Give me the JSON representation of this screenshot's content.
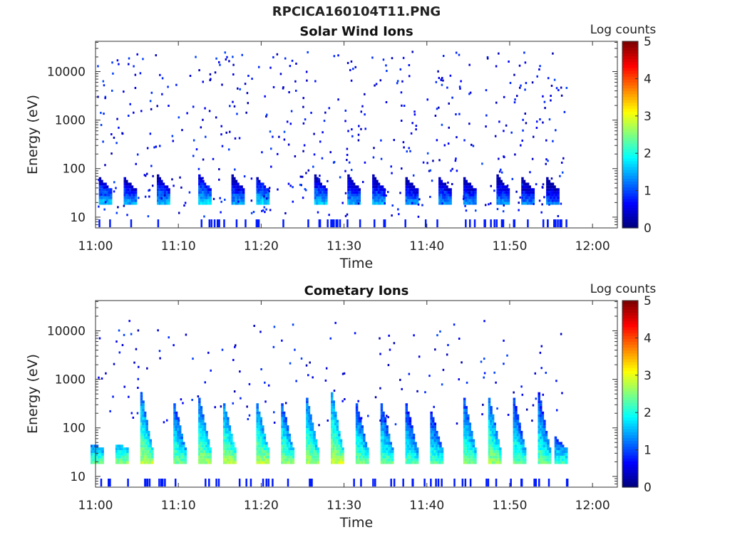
{
  "figure_title": "RPCICA160104T11.PNG",
  "colorbar": {
    "label": "Log counts",
    "ticks": [
      "0",
      "1",
      "2",
      "3",
      "4",
      "5"
    ],
    "colormap": "jet"
  },
  "chart_data": [
    {
      "type": "heatmap",
      "title": "Solar Wind Ions",
      "xlabel": "Time",
      "ylabel": "Energy (eV)",
      "xlim": [
        "11:00",
        "12:03"
      ],
      "ylim": [
        6,
        42000
      ],
      "yscale": "log",
      "x_ticks": [
        "11:00",
        "11:10",
        "11:20",
        "11:30",
        "11:40",
        "11:50",
        "12:00"
      ],
      "y_ticks": [
        "10",
        "100",
        "1000",
        "10000"
      ],
      "data_end": "11:57",
      "color_range": [
        0,
        5
      ],
      "description_of_pattern": "sparse low counts from 100 eV to 10000 eV; periodic bands near 20-60 eV with log counts about 1.5-2.0, repeating roughly every 3.5 minutes",
      "bands": [
        {
          "time": "11:01",
          "energy_eV": [
            18,
            60
          ],
          "peak_log_counts": 1.9
        },
        {
          "time": "11:04",
          "energy_eV": [
            18,
            60
          ],
          "peak_log_counts": 1.7
        },
        {
          "time": "11:08",
          "energy_eV": [
            18,
            70
          ],
          "peak_log_counts": 1.8
        },
        {
          "time": "11:13",
          "energy_eV": [
            18,
            70
          ],
          "peak_log_counts": 2.0
        },
        {
          "time": "11:17",
          "energy_eV": [
            18,
            70
          ],
          "peak_log_counts": 1.7
        },
        {
          "time": "11:20",
          "energy_eV": [
            18,
            60
          ],
          "peak_log_counts": 2.0
        },
        {
          "time": "11:27",
          "energy_eV": [
            18,
            70
          ],
          "peak_log_counts": 1.8
        },
        {
          "time": "11:31",
          "energy_eV": [
            18,
            70
          ],
          "peak_log_counts": 1.7
        },
        {
          "time": "11:34",
          "energy_eV": [
            18,
            70
          ],
          "peak_log_counts": 1.7
        },
        {
          "time": "11:38",
          "energy_eV": [
            18,
            60
          ],
          "peak_log_counts": 1.6
        },
        {
          "time": "11:42",
          "energy_eV": [
            18,
            60
          ],
          "peak_log_counts": 1.7
        },
        {
          "time": "11:45",
          "energy_eV": [
            18,
            60
          ],
          "peak_log_counts": 1.6
        },
        {
          "time": "11:49",
          "energy_eV": [
            18,
            70
          ],
          "peak_log_counts": 1.6
        },
        {
          "time": "11:52",
          "energy_eV": [
            18,
            60
          ],
          "peak_log_counts": 1.5
        },
        {
          "time": "11:55",
          "energy_eV": [
            18,
            60
          ],
          "peak_log_counts": 1.4
        }
      ]
    },
    {
      "type": "heatmap",
      "title": "Cometary Ions",
      "xlabel": "Time",
      "ylabel": "Energy (eV)",
      "xlim": [
        "11:00",
        "12:03"
      ],
      "ylim": [
        6,
        42000
      ],
      "yscale": "log",
      "x_ticks": [
        "11:00",
        "11:10",
        "11:20",
        "11:30",
        "11:40",
        "11:50",
        "12:00"
      ],
      "y_ticks": [
        "10",
        "100",
        "1000",
        "10000"
      ],
      "data_end": "11:57",
      "color_range": [
        0,
        5
      ],
      "description_of_pattern": "strong periodic bands near 20-40 eV with log counts about 2.5-3.2, each with a tail rising toward 500-3000 eV, repeating roughly every 3.5 minutes",
      "bands": [
        {
          "time": "11:00",
          "energy_eV": [
            18,
            45
          ],
          "peak_log_counts": 2.6
        },
        {
          "time": "11:03",
          "energy_eV": [
            18,
            45
          ],
          "peak_log_counts": 2.8
        },
        {
          "time": "11:06",
          "energy_eV": [
            18,
            500
          ],
          "peak_log_counts": 3.0
        },
        {
          "time": "11:10",
          "energy_eV": [
            18,
            300
          ],
          "peak_log_counts": 2.7
        },
        {
          "time": "11:13",
          "energy_eV": [
            18,
            400
          ],
          "peak_log_counts": 2.9
        },
        {
          "time": "11:16",
          "energy_eV": [
            18,
            300
          ],
          "peak_log_counts": 3.0
        },
        {
          "time": "11:20",
          "energy_eV": [
            18,
            300
          ],
          "peak_log_counts": 3.0
        },
        {
          "time": "11:23",
          "energy_eV": [
            18,
            300
          ],
          "peak_log_counts": 2.8
        },
        {
          "time": "11:26",
          "energy_eV": [
            18,
            400
          ],
          "peak_log_counts": 2.9
        },
        {
          "time": "11:29",
          "energy_eV": [
            18,
            500
          ],
          "peak_log_counts": 3.1
        },
        {
          "time": "11:32",
          "energy_eV": [
            18,
            300
          ],
          "peak_log_counts": 2.7
        },
        {
          "time": "11:35",
          "energy_eV": [
            18,
            300
          ],
          "peak_log_counts": 2.6
        },
        {
          "time": "11:38",
          "energy_eV": [
            18,
            300
          ],
          "peak_log_counts": 2.5
        },
        {
          "time": "11:41",
          "energy_eV": [
            18,
            200
          ],
          "peak_log_counts": 2.5
        },
        {
          "time": "11:45",
          "energy_eV": [
            18,
            400
          ],
          "peak_log_counts": 2.7
        },
        {
          "time": "11:48",
          "energy_eV": [
            18,
            400
          ],
          "peak_log_counts": 2.9
        },
        {
          "time": "11:51",
          "energy_eV": [
            18,
            400
          ],
          "peak_log_counts": 2.6
        },
        {
          "time": "11:54",
          "energy_eV": [
            18,
            500
          ],
          "peak_log_counts": 2.6
        },
        {
          "time": "11:56",
          "energy_eV": [
            18,
            60
          ],
          "peak_log_counts": 2.4
        }
      ]
    }
  ]
}
